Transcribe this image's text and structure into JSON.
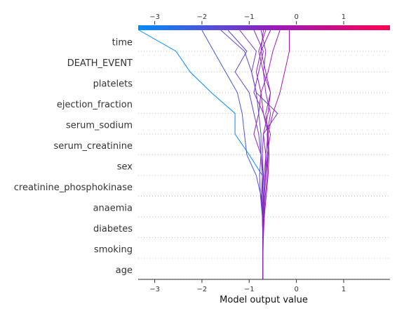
{
  "chart_data": {
    "type": "line",
    "xlabel": "Model output value",
    "xlim": [
      -3.35,
      1.98
    ],
    "x_ticks": [
      -3,
      -2,
      -1,
      0,
      1
    ],
    "features": [
      "time",
      "DEATH_EVENT",
      "platelets",
      "ejection_fraction",
      "serum_sodium",
      "serum_creatinine",
      "sex",
      "creatinine_phosphokinase",
      "anaemia",
      "diabetes",
      "smoking",
      "age"
    ],
    "colorbar": {
      "low_color": "#008bfb",
      "high_color": "#ff0052",
      "mid_color": "#9a1ab8"
    },
    "base_value": -0.71,
    "series": [
      {
        "final": -3.33,
        "values": [
          -2.55,
          -2.25,
          -1.8,
          -1.3,
          -1.3,
          -1.0,
          -0.72,
          -0.73,
          -0.71,
          -0.71,
          -0.71,
          -0.71
        ]
      },
      {
        "final": -2.0,
        "values": [
          -1.75,
          -1.5,
          -1.25,
          -1.15,
          -1.1,
          -1.05,
          -0.85,
          -0.75,
          -0.72,
          -0.71,
          -0.71,
          -0.71
        ]
      },
      {
        "final": -1.45,
        "values": [
          -1.05,
          -1.3,
          -1.0,
          -0.9,
          -0.8,
          -0.75,
          -0.78,
          -0.76,
          -0.72,
          -0.71,
          -0.71,
          -0.71
        ]
      },
      {
        "final": -0.55,
        "values": [
          -0.75,
          -0.85,
          -0.75,
          -0.8,
          -0.9,
          -0.75,
          -0.72,
          -0.74,
          -0.72,
          -0.71,
          -0.71,
          -0.71
        ]
      },
      {
        "final": -1.6,
        "values": [
          -1.1,
          -0.95,
          -0.85,
          -0.8,
          -0.75,
          -0.75,
          -0.7,
          -0.73,
          -0.72,
          -0.71,
          -0.71,
          -0.71
        ]
      },
      {
        "final": -1.2,
        "values": [
          -0.85,
          -0.95,
          -0.85,
          -0.4,
          -0.7,
          -0.72,
          -0.7,
          -0.72,
          -0.71,
          -0.71,
          -0.71,
          -0.71
        ]
      },
      {
        "final": -0.7,
        "values": [
          -0.75,
          -0.65,
          -0.55,
          -0.65,
          -0.6,
          -0.65,
          -0.68,
          -0.7,
          -0.71,
          -0.71,
          -0.71,
          -0.71
        ]
      },
      {
        "final": -0.35,
        "values": [
          -0.5,
          -0.6,
          -0.75,
          -0.7,
          -0.6,
          -0.6,
          -0.65,
          -0.68,
          -0.7,
          -0.71,
          -0.71,
          -0.71
        ]
      },
      {
        "final": -0.75,
        "values": [
          -0.65,
          -0.7,
          -0.65,
          -0.55,
          -0.62,
          -0.6,
          -0.62,
          -0.66,
          -0.69,
          -0.71,
          -0.71,
          -0.71
        ]
      },
      {
        "final": -0.15,
        "values": [
          -0.15,
          -0.25,
          -0.35,
          -0.5,
          -0.6,
          -0.58,
          -0.6,
          -0.64,
          -0.68,
          -0.7,
          -0.71,
          -0.71
        ]
      },
      {
        "final": -0.65,
        "values": [
          -0.8,
          -0.7,
          -0.55,
          -0.6,
          -0.7,
          -0.65,
          -0.65,
          -0.69,
          -0.7,
          -0.71,
          -0.71,
          -0.71
        ]
      },
      {
        "final": -0.9,
        "values": [
          -0.7,
          -0.8,
          -0.9,
          -0.7,
          -0.55,
          -0.62,
          -0.66,
          -0.68,
          -0.7,
          -0.71,
          -0.71,
          -0.71
        ]
      }
    ]
  }
}
